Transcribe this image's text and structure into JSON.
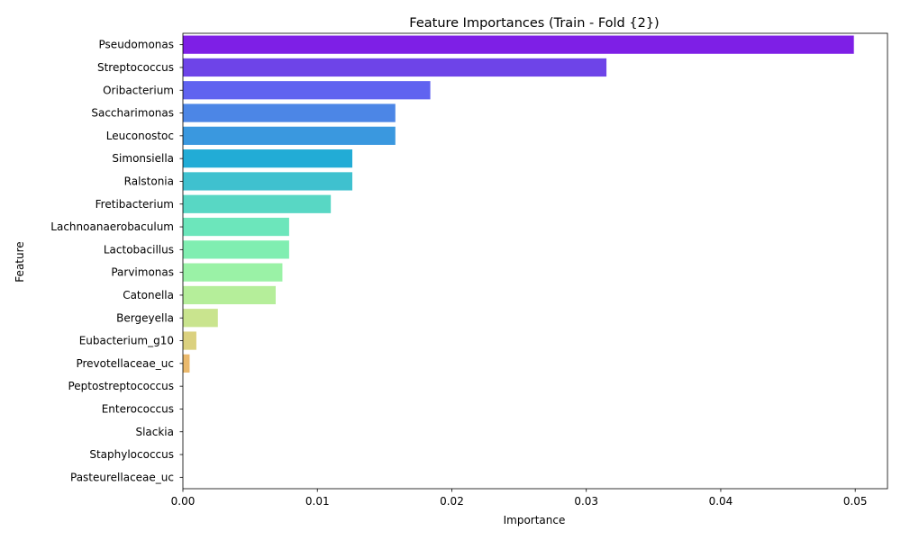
{
  "chart_data": {
    "type": "bar",
    "orientation": "horizontal",
    "title": "Feature Importances (Train - Fold {2})",
    "xlabel": "Importance",
    "ylabel": "Feature",
    "xlim": [
      0,
      0.0524
    ],
    "xticks": [
      0.0,
      0.01,
      0.02,
      0.03,
      0.04,
      0.05
    ],
    "xtick_labels": [
      "0.00",
      "0.01",
      "0.02",
      "0.03",
      "0.04",
      "0.05"
    ],
    "grid": false,
    "legend": "none",
    "categories": [
      "Pseudomonas",
      "Streptococcus",
      "Oribacterium",
      "Saccharimonas",
      "Leuconostoc",
      "Simonsiella",
      "Ralstonia",
      "Fretibacterium",
      "Lachnoanaerobaculum",
      "Lactobacillus",
      "Parvimonas",
      "Catonella",
      "Bergeyella",
      "Eubacterium_g10",
      "Prevotellaceae_uc",
      "Peptostreptococcus",
      "Enterococcus",
      "Slackia",
      "Staphylococcus",
      "Pasteurellaceae_uc"
    ],
    "values": [
      0.0499,
      0.0315,
      0.0184,
      0.0158,
      0.0158,
      0.0126,
      0.0126,
      0.011,
      0.0079,
      0.0079,
      0.0074,
      0.0069,
      0.0026,
      0.001,
      0.0005,
      0.0,
      0.0,
      0.0,
      0.0,
      0.0
    ],
    "colors": [
      "#7e1fe6",
      "#6e44e8",
      "#6063f0",
      "#4c86e6",
      "#3a98df",
      "#22acd6",
      "#3fc1cf",
      "#58d7c4",
      "#6ce6bb",
      "#80eeb1",
      "#9af2a6",
      "#b5ee9a",
      "#c9e48e",
      "#dbd17f",
      "#eab96c",
      "#f59c58",
      "#fb7e45",
      "#ff5f33",
      "#ff3d20",
      "#ff1b0e"
    ]
  }
}
